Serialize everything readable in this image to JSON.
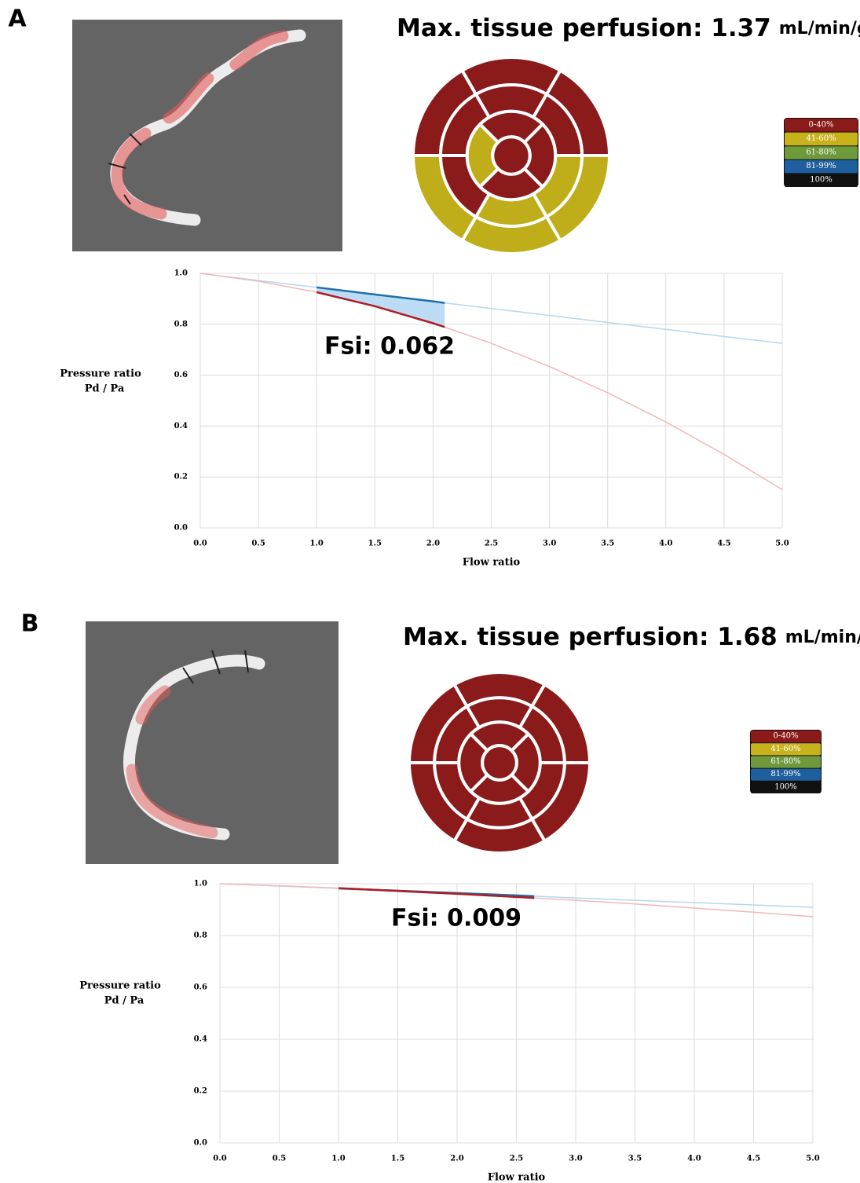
{
  "panels": [
    {
      "label": "A",
      "title": "Max. tissue perfusion: 1.37",
      "unit": "mL/min/g",
      "fsi": "Fsi: 0.062",
      "bullseye": {
        "basal": [
          "#8b1a1a",
          "#8b1a1a",
          "#8b1a1a",
          "#bfae1a",
          "#bfae1a",
          "#bfae1a"
        ],
        "mid": [
          "#8b1a1a",
          "#8b1a1a",
          "#8b1a1a",
          "#bfae1a",
          "#bfae1a",
          "#8b1a1a"
        ],
        "apical": [
          "#8b1a1a",
          "#8b1a1a",
          "#8b1a1a",
          "#bfae1a"
        ],
        "apex": "#8b1a1a"
      }
    },
    {
      "label": "B",
      "title": "Max. tissue perfusion: 1.68",
      "unit": "mL/min/g",
      "fsi": "Fsi: 0.009",
      "bullseye": {
        "basal": [
          "#8b1a1a",
          "#8b1a1a",
          "#8b1a1a",
          "#8b1a1a",
          "#8b1a1a",
          "#8b1a1a"
        ],
        "mid": [
          "#8b1a1a",
          "#8b1a1a",
          "#8b1a1a",
          "#8b1a1a",
          "#8b1a1a",
          "#8b1a1a"
        ],
        "apical": [
          "#8b1a1a",
          "#8b1a1a",
          "#8b1a1a",
          "#8b1a1a"
        ],
        "apex": "#8b1a1a"
      }
    }
  ],
  "legend": {
    "labels": [
      "0-40%",
      "41-60%",
      "61-80%",
      "81-99%",
      "100%"
    ],
    "colors": [
      "#8b1a1a",
      "#c8b21c",
      "#6e9a3c",
      "#1f5f9e",
      "#111111"
    ]
  },
  "chart_data": [
    {
      "type": "line",
      "ylabel": [
        "Pressure ratio",
        "Pd / Pa"
      ],
      "xlabel": "Flow ratio",
      "grid": true,
      "x": [
        0,
        0.5,
        1,
        1.5,
        2,
        2.1,
        2.5,
        3,
        3.5,
        4,
        4.5,
        5
      ],
      "highlight": [
        1,
        2.1
      ],
      "highlight_fill": "#bcdcf5",
      "series": [
        {
          "color": "#b5d7ec",
          "highlight_color": "#1f6fa8",
          "values": [
            1,
            0.972,
            0.945,
            0.917,
            0.89,
            0.884,
            0.862,
            0.835,
            0.807,
            0.78,
            0.752,
            0.725
          ]
        },
        {
          "color": "#f0b8b8",
          "highlight_color": "#b01c24",
          "values": [
            1,
            0.969,
            0.926,
            0.871,
            0.804,
            0.789,
            0.725,
            0.634,
            0.531,
            0.416,
            0.289,
            0.15
          ]
        }
      ],
      "xlim": [
        0,
        5
      ],
      "ylim": [
        0,
        1
      ],
      "xticks": [
        {
          "value": 0,
          "label": "0.0"
        },
        0.5,
        {
          "value": 1,
          "label": "1.0"
        },
        1.5,
        {
          "value": 2,
          "label": "2.0"
        },
        2.5,
        {
          "value": 3,
          "label": "3.0"
        },
        3.5,
        {
          "value": 4,
          "label": "4.0"
        },
        4.5,
        {
          "value": 5,
          "label": "5.0"
        }
      ],
      "yticks": [
        {
          "value": 0,
          "label": "0.0"
        },
        0.2,
        0.4,
        0.6,
        0.8,
        {
          "value": 1,
          "label": "1.0"
        }
      ]
    },
    {
      "type": "line",
      "ylabel": [
        "Pressure ratio",
        "Pd / Pa"
      ],
      "xlabel": "Flow ratio",
      "grid": true,
      "x": [
        0,
        0.5,
        1,
        1.5,
        2,
        2.5,
        2.65,
        3,
        3.5,
        4,
        4.5,
        5
      ],
      "highlight": [
        1,
        2.65
      ],
      "highlight_fill": "#bcdcf5",
      "series": [
        {
          "color": "#b5d7ec",
          "highlight_color": "#1f6fa8",
          "values": [
            1,
            0.991,
            0.982,
            0.973,
            0.964,
            0.955,
            0.952,
            0.945,
            0.936,
            0.927,
            0.918,
            0.909
          ]
        },
        {
          "color": "#f0b8b8",
          "highlight_color": "#b01c24",
          "values": [
            1,
            0.992,
            0.983,
            0.972,
            0.961,
            0.949,
            0.945,
            0.936,
            0.922,
            0.906,
            0.89,
            0.873
          ]
        }
      ],
      "xlim": [
        0,
        5
      ],
      "ylim": [
        0,
        1
      ],
      "xticks": [
        {
          "value": 0,
          "label": "0.0"
        },
        0.5,
        {
          "value": 1,
          "label": "1.0"
        },
        1.5,
        {
          "value": 2,
          "label": "2.0"
        },
        2.5,
        {
          "value": 3,
          "label": "3.0"
        },
        3.5,
        {
          "value": 4,
          "label": "4.0"
        },
        4.5,
        {
          "value": 5,
          "label": "5.0"
        }
      ],
      "yticks": [
        {
          "value": 0,
          "label": "0.0"
        },
        0.2,
        0.4,
        0.6,
        0.8,
        {
          "value": 1,
          "label": "1.0"
        }
      ]
    }
  ]
}
